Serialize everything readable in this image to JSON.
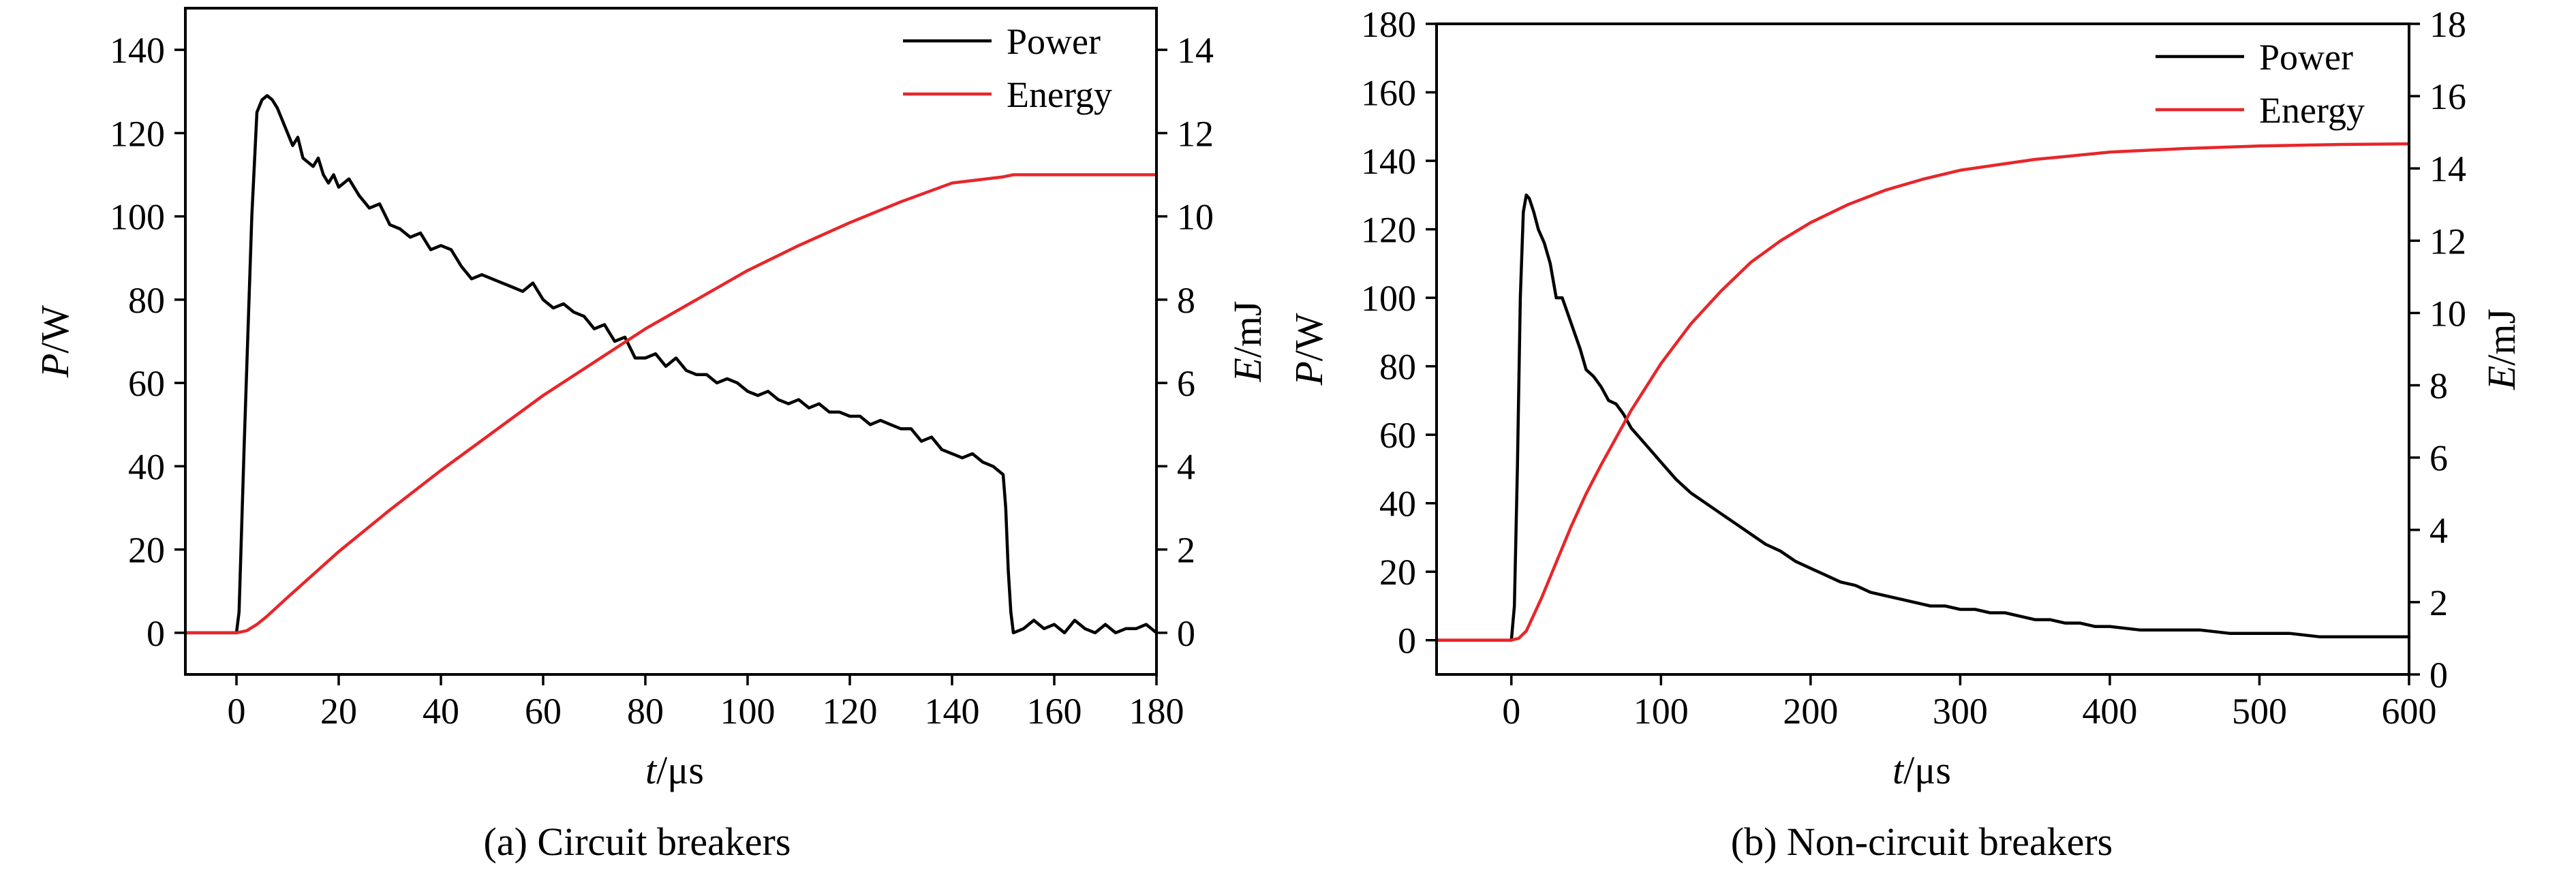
{
  "chart_data": [
    {
      "type": "line",
      "caption": "(a) Circuit breakers",
      "xlabel": "t/μs",
      "ylabel_left": "P/W",
      "ylabel_right": "E/mJ",
      "xlim": [
        -10,
        180
      ],
      "ylim_left": [
        -10,
        150
      ],
      "ylim_right": [
        -1,
        15
      ],
      "xticks": [
        0,
        20,
        40,
        60,
        80,
        100,
        120,
        140,
        160,
        180
      ],
      "yticks_left": [
        0,
        20,
        40,
        60,
        80,
        100,
        120,
        140
      ],
      "yticks_right": [
        0,
        2,
        4,
        6,
        8,
        10,
        12,
        14
      ],
      "grid": false,
      "legend_position": "top-right",
      "series": [
        {
          "name": "Power",
          "axis": "left",
          "color": "#000000",
          "x": [
            -10,
            0,
            0.5,
            1.5,
            3,
            4,
            5,
            6,
            7,
            8,
            9,
            10,
            11,
            12,
            13,
            14,
            15,
            16,
            17,
            18,
            19,
            20,
            21,
            22,
            24,
            26,
            28,
            30,
            32,
            34,
            36,
            38,
            40,
            42,
            44,
            46,
            48,
            50,
            52,
            54,
            56,
            58,
            60,
            62,
            64,
            66,
            68,
            70,
            72,
            74,
            76,
            78,
            80,
            82,
            84,
            86,
            88,
            90,
            92,
            94,
            96,
            98,
            100,
            102,
            104,
            106,
            108,
            110,
            112,
            114,
            116,
            118,
            120,
            122,
            124,
            126,
            128,
            130,
            132,
            134,
            136,
            138,
            140,
            142,
            144,
            146,
            148,
            149,
            150,
            150.5,
            151,
            151.5,
            152,
            154,
            156,
            158,
            160,
            162,
            164,
            166,
            168,
            170,
            172,
            174,
            176,
            178,
            180
          ],
          "y": [
            0,
            0,
            5,
            45,
            100,
            125,
            128,
            129,
            128,
            126,
            123,
            120,
            117,
            119,
            114,
            113,
            112,
            114,
            110,
            108,
            110,
            107,
            108,
            109,
            105,
            102,
            103,
            98,
            97,
            95,
            96,
            92,
            93,
            92,
            88,
            85,
            86,
            85,
            84,
            83,
            82,
            84,
            80,
            78,
            79,
            77,
            76,
            73,
            74,
            70,
            71,
            66,
            66,
            67,
            64,
            66,
            63,
            62,
            62,
            60,
            61,
            60,
            58,
            57,
            58,
            56,
            55,
            56,
            54,
            55,
            53,
            53,
            52,
            52,
            50,
            51,
            50,
            49,
            49,
            46,
            47,
            44,
            43,
            42,
            43,
            41,
            40,
            39,
            38,
            30,
            15,
            5,
            0,
            1,
            3,
            1,
            2,
            0,
            3,
            1,
            0,
            2,
            0,
            1,
            1,
            2,
            0
          ]
        },
        {
          "name": "Energy",
          "axis": "right",
          "color": "#e8262a",
          "x": [
            -10,
            0,
            2,
            4,
            6,
            10,
            20,
            30,
            40,
            50,
            60,
            70,
            80,
            90,
            100,
            110,
            120,
            130,
            140,
            150,
            152,
            160,
            170,
            180
          ],
          "y": [
            0,
            0,
            0.05,
            0.2,
            0.4,
            0.85,
            1.95,
            2.95,
            3.9,
            4.8,
            5.7,
            6.5,
            7.3,
            8.0,
            8.7,
            9.3,
            9.85,
            10.35,
            10.8,
            10.95,
            11.0,
            11.0,
            11.0,
            11.0
          ]
        }
      ]
    },
    {
      "type": "line",
      "caption": "(b) Non-circuit breakers",
      "xlabel": "t/μs",
      "ylabel_left": "P/W",
      "ylabel_right": "E/mJ",
      "xlim": [
        -50,
        600
      ],
      "ylim_left": [
        -10,
        180
      ],
      "ylim_right": [
        0,
        18
      ],
      "xticks": [
        0,
        100,
        200,
        300,
        400,
        500,
        600
      ],
      "yticks_left": [
        0,
        20,
        40,
        60,
        80,
        100,
        120,
        140,
        160,
        180
      ],
      "yticks_right": [
        0,
        2,
        4,
        6,
        8,
        10,
        12,
        14,
        16,
        18
      ],
      "grid": false,
      "legend_position": "top-right",
      "series": [
        {
          "name": "Power",
          "axis": "left",
          "color": "#000000",
          "x": [
            -50,
            0,
            2,
            4,
            6,
            8,
            10,
            12,
            15,
            18,
            22,
            26,
            30,
            34,
            38,
            42,
            46,
            50,
            55,
            60,
            65,
            70,
            75,
            80,
            90,
            100,
            110,
            120,
            130,
            140,
            150,
            160,
            170,
            180,
            190,
            200,
            210,
            220,
            230,
            240,
            250,
            260,
            270,
            280,
            290,
            300,
            310,
            320,
            330,
            340,
            350,
            360,
            370,
            380,
            390,
            400,
            420,
            440,
            460,
            480,
            500,
            520,
            540,
            560,
            580,
            600
          ],
          "y": [
            0,
            0,
            10,
            50,
            100,
            125,
            130,
            129,
            125,
            120,
            116,
            110,
            100,
            100,
            95,
            90,
            85,
            79,
            77,
            74,
            70,
            69,
            66,
            62,
            57,
            52,
            47,
            43,
            40,
            37,
            34,
            31,
            28,
            26,
            23,
            21,
            19,
            17,
            16,
            14,
            13,
            12,
            11,
            10,
            10,
            9,
            9,
            8,
            8,
            7,
            6,
            6,
            5,
            5,
            4,
            4,
            3,
            3,
            3,
            2,
            2,
            2,
            1,
            1,
            1,
            1
          ]
        },
        {
          "name": "Energy",
          "axis": "right",
          "color": "#e8262a",
          "x": [
            -50,
            0,
            5,
            10,
            20,
            30,
            40,
            50,
            60,
            80,
            100,
            120,
            140,
            160,
            180,
            200,
            225,
            250,
            275,
            300,
            325,
            350,
            375,
            400,
            450,
            500,
            550,
            600
          ],
          "y": [
            0.95,
            0.95,
            1.0,
            1.2,
            2.1,
            3.1,
            4.1,
            5.0,
            5.8,
            7.3,
            8.6,
            9.7,
            10.6,
            11.4,
            12.0,
            12.5,
            13.0,
            13.4,
            13.7,
            13.95,
            14.1,
            14.25,
            14.35,
            14.45,
            14.55,
            14.62,
            14.66,
            14.68
          ]
        }
      ]
    }
  ]
}
